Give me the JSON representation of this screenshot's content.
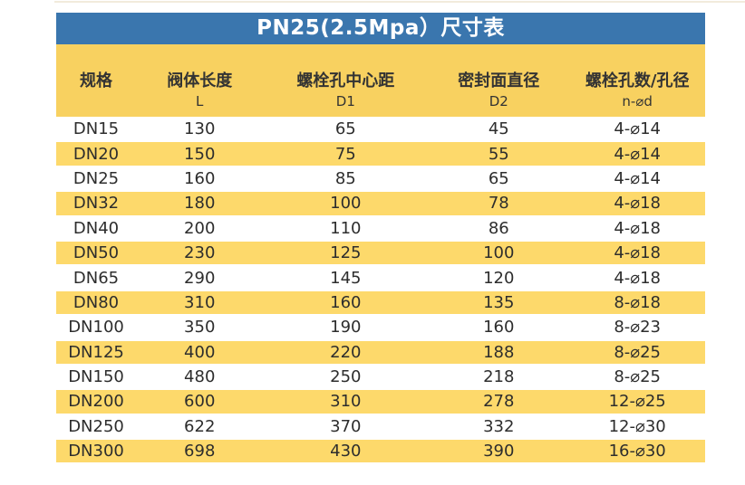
{
  "title": "PN25(2.5Mpa）尺寸表",
  "colors": {
    "title_bar_blue": "#3a76ae",
    "title_text": "#ffffff",
    "header_yellow": "#f8d160",
    "row_yellow": "#fdd96b",
    "row_white": "#ffffff",
    "body_text": "#2d2d2d"
  },
  "chart_data": {
    "type": "table",
    "title": "PN25(2.5Mpa）尺寸表",
    "columns": [
      {
        "label": "规格",
        "sub": ""
      },
      {
        "label": "阀体长度",
        "sub": "L"
      },
      {
        "label": "螺栓孔中心距",
        "sub": "D1"
      },
      {
        "label": "密封面直径",
        "sub": "D2"
      },
      {
        "label": "螺栓孔数/孔径",
        "sub": "n-⌀d"
      }
    ],
    "rows": [
      [
        "DN15",
        "130",
        "65",
        "45",
        "4-⌀14"
      ],
      [
        "DN20",
        "150",
        "75",
        "55",
        "4-⌀14"
      ],
      [
        "DN25",
        "160",
        "85",
        "65",
        "4-⌀14"
      ],
      [
        "DN32",
        "180",
        "100",
        "78",
        "4-⌀18"
      ],
      [
        "DN40",
        "200",
        "110",
        "86",
        "4-⌀18"
      ],
      [
        "DN50",
        "230",
        "125",
        "100",
        "4-⌀18"
      ],
      [
        "DN65",
        "290",
        "145",
        "120",
        "4-⌀18"
      ],
      [
        "DN80",
        "310",
        "160",
        "135",
        "8-⌀18"
      ],
      [
        "DN100",
        "350",
        "190",
        "160",
        "8-⌀23"
      ],
      [
        "DN125",
        "400",
        "220",
        "188",
        "8-⌀25"
      ],
      [
        "DN150",
        "480",
        "250",
        "218",
        "8-⌀25"
      ],
      [
        "DN200",
        "600",
        "310",
        "278",
        "12-⌀25"
      ],
      [
        "DN250",
        "622",
        "370",
        "332",
        "12-⌀30"
      ],
      [
        "DN300",
        "698",
        "430",
        "390",
        "16-⌀30"
      ]
    ],
    "layout": {
      "zebra_striping": true,
      "first_data_row_background": "white",
      "grid_lines": false
    }
  }
}
